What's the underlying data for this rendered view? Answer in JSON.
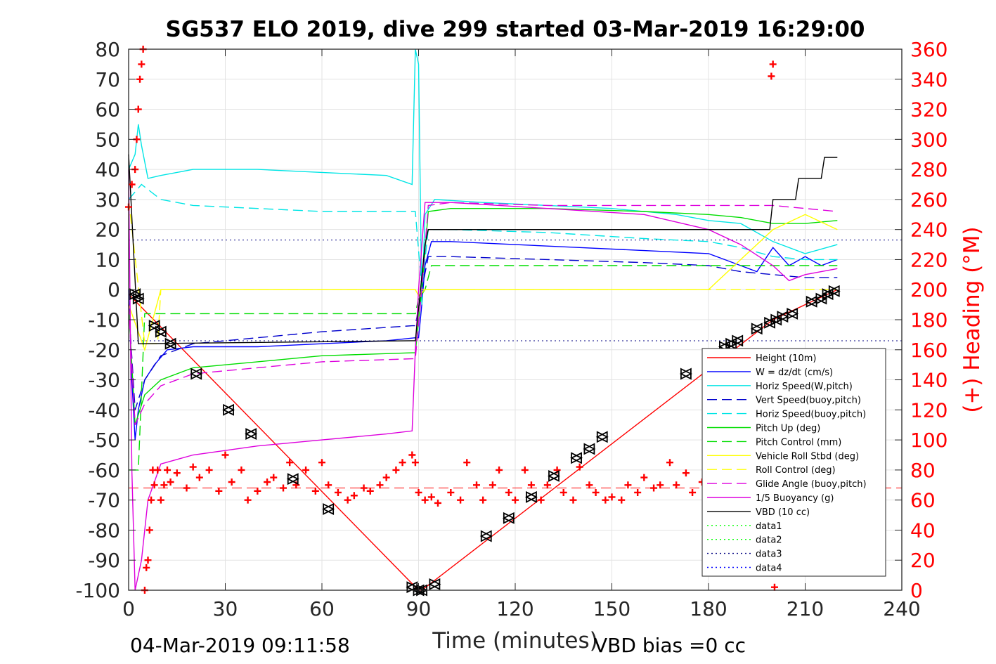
{
  "chart_data": {
    "type": "line",
    "title": "SG537 ELO 2019, dive 299 started 03-Mar-2019 16:29:00",
    "xlabel": "Time (minutes)",
    "ylabel_right": "(+) Heading (°M)",
    "footer_left": "04-Mar-2019 09:11:58",
    "footer_right": "VBD bias =0 cc",
    "xlim": [
      0,
      240
    ],
    "ylim": [
      -100,
      80
    ],
    "ylim_right": [
      0,
      360
    ],
    "xticks": [
      "0",
      "30",
      "60",
      "90",
      "120",
      "150",
      "180",
      "210",
      "240"
    ],
    "yticks": [
      "80",
      "70",
      "60",
      "50",
      "40",
      "30",
      "20",
      "10",
      "0",
      "-10",
      "-20",
      "-30",
      "-40",
      "-50",
      "-60",
      "-70",
      "-80",
      "-90",
      "-100"
    ],
    "yticks_right": [
      "360",
      "340",
      "320",
      "300",
      "280",
      "260",
      "240",
      "220",
      "200",
      "180",
      "160",
      "140",
      "120",
      "100",
      "80",
      "60",
      "40",
      "20",
      "0"
    ],
    "grid": true,
    "legend_position": "bottom-right",
    "series": [
      {
        "name": "Height (10m)",
        "color": "#ff0000",
        "style": "solid",
        "x": [
          0,
          90,
          91,
          200,
          220
        ],
        "y": [
          -1.5,
          -100,
          -100,
          -10,
          0
        ]
      },
      {
        "name": "W = dz/dt (cm/s)",
        "color": "#0000ff",
        "style": "solid",
        "x": [
          0,
          1,
          2,
          3,
          5,
          8,
          12,
          20,
          40,
          60,
          80,
          89,
          90,
          91,
          92,
          94,
          100,
          120,
          140,
          160,
          180,
          185,
          190,
          195,
          200,
          205,
          210,
          215,
          220
        ],
        "y": [
          0,
          -30,
          -50,
          -40,
          -30,
          -25,
          -20,
          -19,
          -19,
          -18,
          -17,
          -16,
          -16,
          -5,
          8,
          16,
          16,
          15,
          14,
          13,
          12,
          10,
          8,
          6,
          14,
          8,
          11,
          8,
          10
        ]
      },
      {
        "name": "Horiz Speed(W,pitch)",
        "color": "#00e5e5",
        "style": "solid",
        "x": [
          0,
          2,
          3,
          4,
          6,
          10,
          20,
          40,
          60,
          80,
          88,
          89,
          90,
          91,
          92,
          95,
          110,
          130,
          150,
          170,
          180,
          190,
          200,
          210,
          220
        ],
        "y": [
          40,
          45,
          55,
          48,
          37,
          38,
          40,
          40,
          39,
          38,
          35,
          80,
          75,
          -5,
          25,
          30,
          29,
          28,
          27,
          25,
          23,
          22,
          16,
          12,
          15
        ]
      },
      {
        "name": "Vert Speed(buoy,pitch)",
        "color": "#0000cc",
        "style": "dashed",
        "x": [
          0,
          2,
          5,
          10,
          20,
          40,
          60,
          88,
          89,
          91,
          93,
          100,
          130,
          160,
          180,
          190,
          200,
          210,
          220
        ],
        "y": [
          -5,
          -40,
          -30,
          -22,
          -18,
          -16,
          -14,
          -12,
          -12,
          0,
          11,
          11,
          10,
          9,
          8,
          6,
          5,
          4,
          4
        ]
      },
      {
        "name": "Horiz Speed(buoy,pitch)",
        "color": "#00e5e5",
        "style": "dashed",
        "x": [
          0,
          4,
          10,
          20,
          40,
          60,
          88,
          89,
          91,
          93,
          100,
          130,
          160,
          180,
          190,
          200,
          210,
          220
        ],
        "y": [
          30,
          35,
          30,
          28,
          27,
          26,
          26,
          26,
          0,
          20,
          20,
          19,
          17,
          16,
          14,
          11,
          10,
          10
        ]
      },
      {
        "name": "Pitch Up (deg)",
        "color": "#00dd00",
        "style": "solid",
        "x": [
          0,
          2,
          5,
          10,
          20,
          40,
          60,
          88,
          89,
          91,
          93,
          100,
          130,
          160,
          180,
          190,
          200,
          210,
          220
        ],
        "y": [
          -5,
          -45,
          -35,
          -30,
          -26,
          -24,
          -22,
          -21,
          -21,
          0,
          26,
          27,
          27,
          26,
          25,
          24,
          22,
          22,
          23
        ]
      },
      {
        "name": "Pitch Control (mm)",
        "color": "#00dd00",
        "style": "dashed",
        "x": [
          0,
          3,
          5,
          89,
          90,
          92,
          94,
          220
        ],
        "y": [
          -60,
          -60,
          -8,
          -8,
          -3,
          0,
          8,
          8
        ]
      },
      {
        "name": "Vehicle Roll Stbd (deg)",
        "color": "#ffff00",
        "style": "solid",
        "x": [
          0,
          5,
          10,
          89,
          90,
          92,
          180,
          190,
          200,
          210,
          220
        ],
        "y": [
          -5,
          -20,
          0,
          0,
          -2,
          0,
          0,
          10,
          20,
          25,
          20
        ]
      },
      {
        "name": "Roll Control (deg)",
        "color": "#ffff00",
        "style": "dashed",
        "x": [
          0,
          5,
          9,
          10,
          11,
          89,
          90,
          220
        ],
        "y": [
          30,
          -18,
          -18,
          0,
          0,
          0,
          0,
          0
        ]
      },
      {
        "name": "Glide Angle (buoy,pitch)",
        "color": "#dd00dd",
        "style": "dashed",
        "x": [
          0,
          2,
          5,
          10,
          20,
          40,
          60,
          88,
          89,
          91,
          93,
          100,
          130,
          160,
          180,
          190,
          200,
          210,
          220
        ],
        "y": [
          -5,
          -45,
          -38,
          -32,
          -28,
          -26,
          -24,
          -23,
          -23,
          0,
          28,
          29,
          28,
          28,
          28,
          28,
          28,
          27,
          26
        ]
      },
      {
        "name": "1/5 Buoyancy (g)",
        "color": "#dd00dd",
        "style": "solid",
        "x": [
          0,
          1,
          2,
          4,
          6,
          10,
          20,
          40,
          60,
          80,
          88,
          89,
          90,
          92,
          100,
          130,
          160,
          180,
          190,
          200,
          205,
          210,
          220
        ],
        "y": [
          40,
          -60,
          -100,
          -90,
          -70,
          -58,
          -55,
          -52,
          -50,
          -48,
          -47,
          -20,
          0,
          29,
          29,
          27,
          25,
          20,
          15,
          8,
          3,
          5,
          7
        ]
      },
      {
        "name": "VBD (10 cc)",
        "color": "#000000",
        "style": "solid",
        "x": [
          0,
          3,
          4,
          88,
          89,
          92,
          93,
          199,
          200,
          207,
          208,
          215,
          216,
          220
        ],
        "y": [
          45,
          -18,
          -18,
          -17,
          -17,
          15,
          20,
          20,
          30,
          30,
          37,
          37,
          44,
          44
        ]
      },
      {
        "name": "data1",
        "color": "#00ff00",
        "style": "dotted",
        "x": [],
        "y": []
      },
      {
        "name": "data2",
        "color": "#00ff00",
        "style": "dotted",
        "x": [],
        "y": []
      },
      {
        "name": "data3",
        "color": "#000080",
        "style": "dotted",
        "x": [],
        "y": []
      },
      {
        "name": "data4",
        "color": "#0000ff",
        "style": "dotted",
        "x": [],
        "y": []
      }
    ],
    "reference_lines": [
      {
        "color": "#000080",
        "style": "dotted",
        "y": 16.5
      },
      {
        "color": "#000080",
        "style": "dotted",
        "y": -17
      },
      {
        "color": "#ff0000",
        "style": "dashed",
        "y": -66
      }
    ],
    "heading": {
      "color": "#ff0000",
      "marker": "+",
      "axis": "right",
      "x": [
        0,
        1,
        2,
        2.5,
        3,
        3.5,
        4,
        4.5,
        5,
        5.5,
        6,
        6.5,
        7,
        7.5,
        8,
        9,
        10,
        11,
        12,
        13,
        15,
        18,
        20,
        22,
        25,
        28,
        30,
        32,
        35,
        37,
        40,
        43,
        45,
        48,
        50,
        52,
        55,
        58,
        60,
        62,
        65,
        68,
        70,
        73,
        75,
        78,
        80,
        83,
        85,
        88,
        89,
        90,
        92,
        94,
        96,
        100,
        103,
        105,
        108,
        110,
        113,
        115,
        118,
        120,
        123,
        125,
        128,
        130,
        133,
        135,
        138,
        140,
        143,
        145,
        148,
        150,
        153,
        155,
        158,
        160,
        163,
        165,
        168,
        170,
        173,
        175,
        178,
        180,
        199.5,
        200,
        200.5
      ],
      "y": [
        255,
        270,
        280,
        300,
        320,
        340,
        350,
        360,
        0,
        15,
        20,
        40,
        60,
        80,
        70,
        80,
        60,
        70,
        80,
        72,
        78,
        68,
        82,
        75,
        80,
        66,
        90,
        72,
        80,
        60,
        66,
        72,
        75,
        68,
        85,
        70,
        80,
        66,
        85,
        70,
        65,
        60,
        63,
        68,
        66,
        70,
        75,
        80,
        85,
        90,
        85,
        65,
        60,
        62,
        58,
        65,
        60,
        85,
        70,
        60,
        70,
        80,
        65,
        60,
        80,
        70,
        60,
        70,
        80,
        65,
        60,
        82,
        70,
        65,
        60,
        62,
        60,
        70,
        65,
        75,
        68,
        70,
        85,
        70,
        78,
        65,
        72,
        66,
        342,
        350,
        2
      ]
    },
    "markers": {
      "symbol": "triangle-pair",
      "color": "#000000",
      "x": [
        2,
        3,
        8,
        10,
        13,
        21,
        31,
        38,
        51,
        62,
        88,
        90,
        91,
        95,
        111,
        118,
        125,
        132,
        139,
        143,
        147,
        173,
        185,
        187,
        189,
        195,
        199,
        201,
        203,
        206,
        212,
        215,
        217,
        219
      ],
      "y": [
        -1.5,
        -3,
        -12,
        -14,
        -18,
        -28,
        -40,
        -48,
        -63,
        -73,
        -99,
        -100,
        -100,
        -98,
        -82,
        -76,
        -69,
        -62,
        -56,
        -53,
        -49,
        -28,
        -19,
        -18,
        -17,
        -13,
        -11,
        -10,
        -9,
        -8,
        -4,
        -3,
        -1.5,
        -0.5
      ]
    }
  }
}
